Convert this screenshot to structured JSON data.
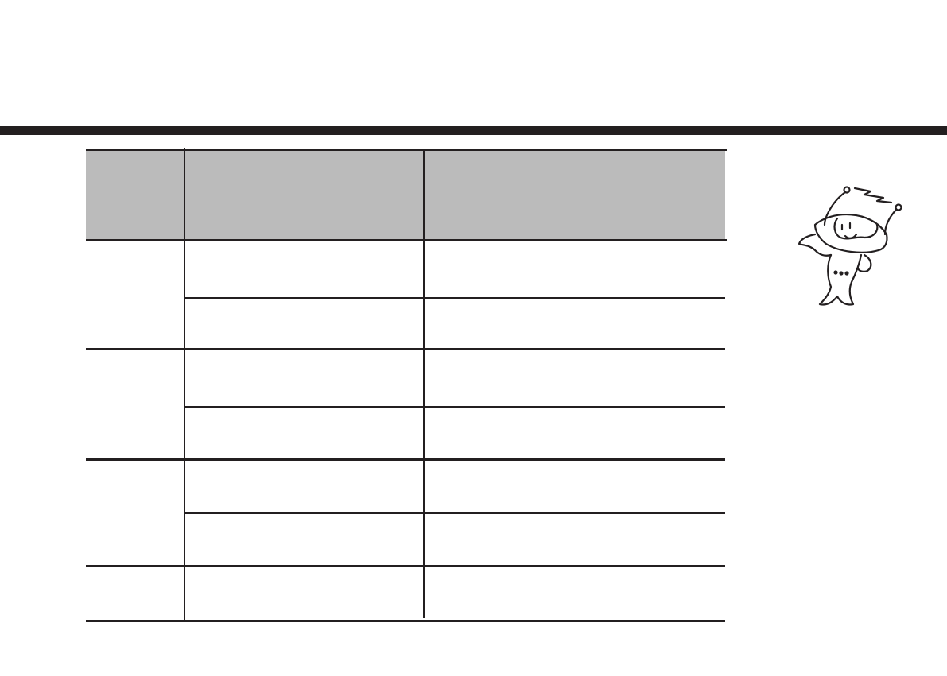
{
  "page": {
    "colors": {
      "rule": "#231f20",
      "header_fill": "#bbbbbb",
      "background": "#ffffff"
    },
    "mascot": {
      "icon": "alien-mascot-icon"
    }
  }
}
